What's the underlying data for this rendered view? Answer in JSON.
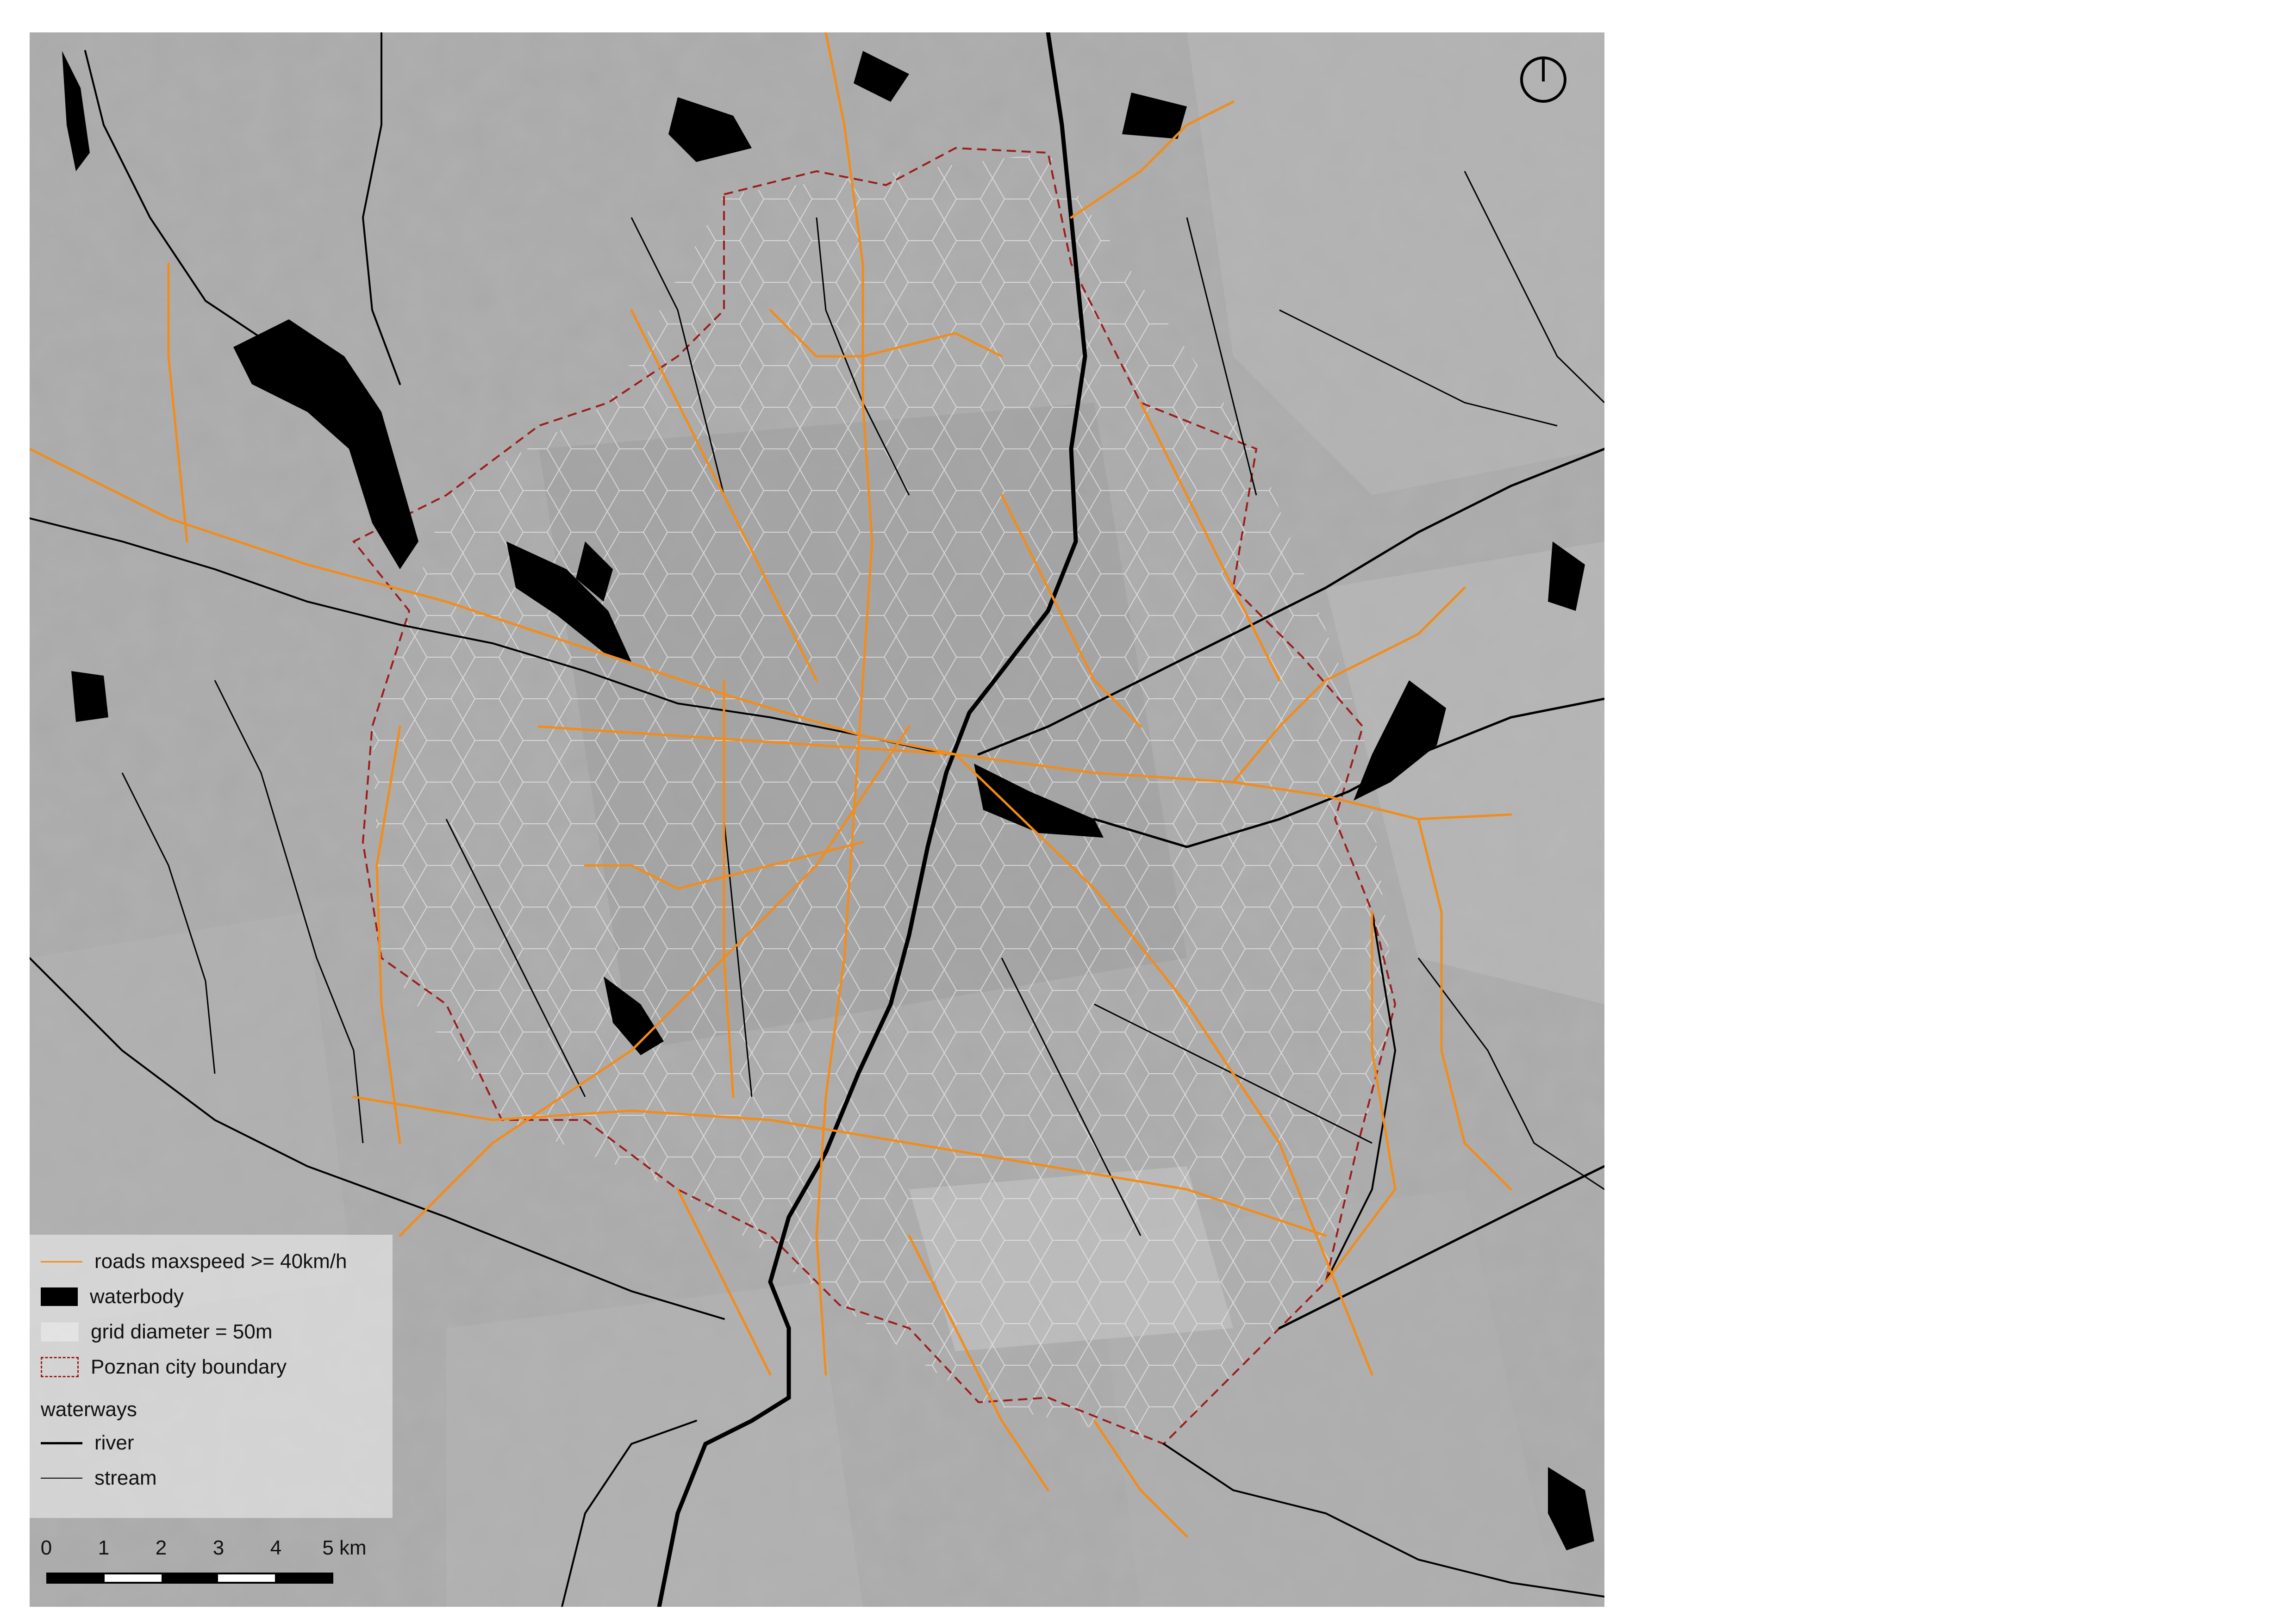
{
  "legend": {
    "items": [
      {
        "label": "roads maxspeed >= 40km/h",
        "symbol": "road-line"
      },
      {
        "label": "waterbody",
        "symbol": "water-fill"
      },
      {
        "label": "grid diameter = 50m",
        "symbol": "hex-grid"
      },
      {
        "label": "Poznan city boundary",
        "symbol": "dashed-boundary"
      }
    ],
    "group_title": "waterways",
    "group_items": [
      {
        "label": "river",
        "symbol": "thick-line"
      },
      {
        "label": "stream",
        "symbol": "thin-line"
      }
    ]
  },
  "scalebar": {
    "labels": [
      "0",
      "1",
      "2",
      "3",
      "4",
      "5 km"
    ]
  },
  "colors": {
    "roads": "#f28c1a",
    "water": "#000000",
    "boundary": "#9c1c1c",
    "basemap": "#a8a8a8"
  },
  "icons": {
    "north_arrow": "north-arrow-icon"
  }
}
